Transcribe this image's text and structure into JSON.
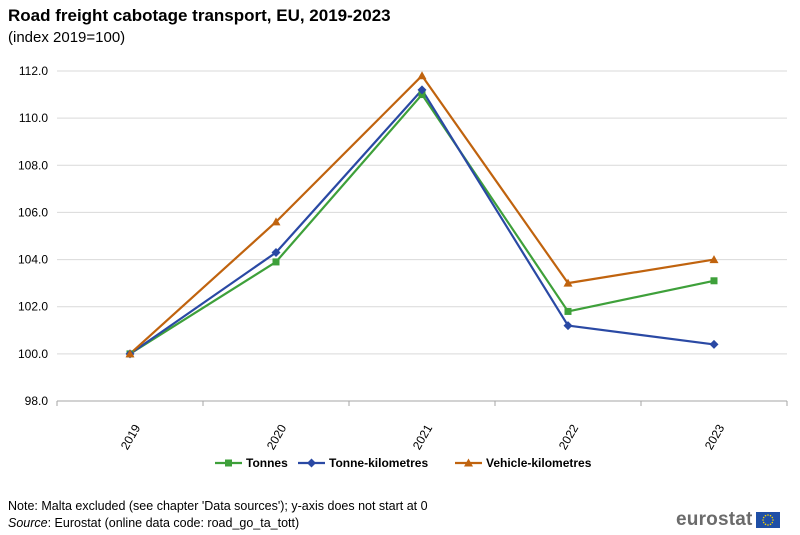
{
  "header": {
    "title": "Road freight cabotage transport, EU, 2019-2023",
    "subtitle": "(index 2019=100)"
  },
  "chart_data": {
    "type": "line",
    "title": "Road freight cabotage transport, EU, 2019-2023",
    "subtitle": "(index 2019=100)",
    "xlabel": "",
    "ylabel": "",
    "categories": [
      "2019",
      "2020",
      "2021",
      "2022",
      "2023"
    ],
    "ylim": [
      98.0,
      112.0
    ],
    "yticks": [
      "98.0",
      "100.0",
      "102.0",
      "104.0",
      "106.0",
      "108.0",
      "110.0",
      "112.0"
    ],
    "grid": true,
    "legend_position": "bottom",
    "series": [
      {
        "name": "Tonnes",
        "color": "#3ea03a",
        "marker": "square",
        "values": [
          100.0,
          103.9,
          111.0,
          101.8,
          103.1
        ]
      },
      {
        "name": "Tonne-kilometres",
        "color": "#2a49a4",
        "marker": "diamond",
        "values": [
          100.0,
          104.3,
          111.2,
          101.2,
          100.4
        ]
      },
      {
        "name": "Vehicle-kilometres",
        "color": "#c0630e",
        "marker": "triangle",
        "values": [
          100.0,
          105.6,
          111.8,
          103.0,
          104.0
        ]
      }
    ]
  },
  "footer": {
    "note": "Note: Malta excluded (see chapter 'Data sources'); y-axis does not start at 0",
    "source_label": "Source",
    "source_text": ": Eurostat (online data code: road_go_ta_tott)"
  },
  "logo": {
    "text": "eurostat",
    "flag_color": "#1f4fa6",
    "star_color": "#f5d400"
  }
}
